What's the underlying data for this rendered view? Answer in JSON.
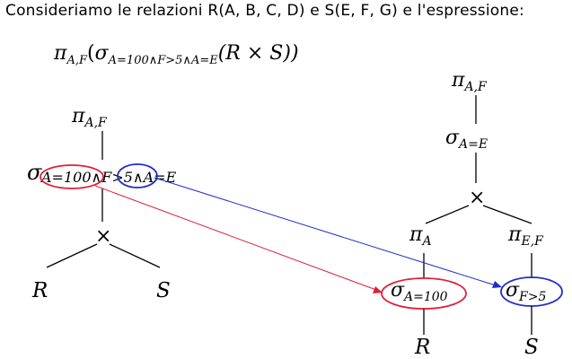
{
  "intro_text": "Consideriamo le relazioni R(A, B, C, D) e S(E, F, G) e l'espressione:",
  "expression": {
    "pi": "π",
    "pi_sub": "A,F",
    "open_paren": "(",
    "sigma": "σ",
    "sigma_sub": "A=100∧F>5∧A=E",
    "body": "(R × S))"
  },
  "left_tree": {
    "projection": {
      "symbol": "π",
      "sub": "A,F"
    },
    "selection_symbol": "σ",
    "selection_cond_1": "A=100",
    "selection_and_1": "∧",
    "selection_cond_2": "F>5",
    "selection_tail": "∧A=E",
    "join": "×",
    "leaf_r": "R",
    "leaf_s": "S"
  },
  "right_tree": {
    "projection": {
      "symbol": "π",
      "sub": "A,F"
    },
    "selection": {
      "symbol": "σ",
      "sub": "A=E"
    },
    "join": "×",
    "proj_left": {
      "symbol": "π",
      "sub": "A"
    },
    "proj_right": {
      "symbol": "π",
      "sub": "E,F"
    },
    "sel_left": {
      "symbol": "σ",
      "sub": "A=100"
    },
    "sel_right": {
      "symbol": "σ",
      "sub": "F>5"
    },
    "leaf_r": "R",
    "leaf_s": "S"
  },
  "colors": {
    "red_highlight": "#e0203a",
    "blue_highlight": "#1f2fc8",
    "tree_lines": "#000000"
  }
}
